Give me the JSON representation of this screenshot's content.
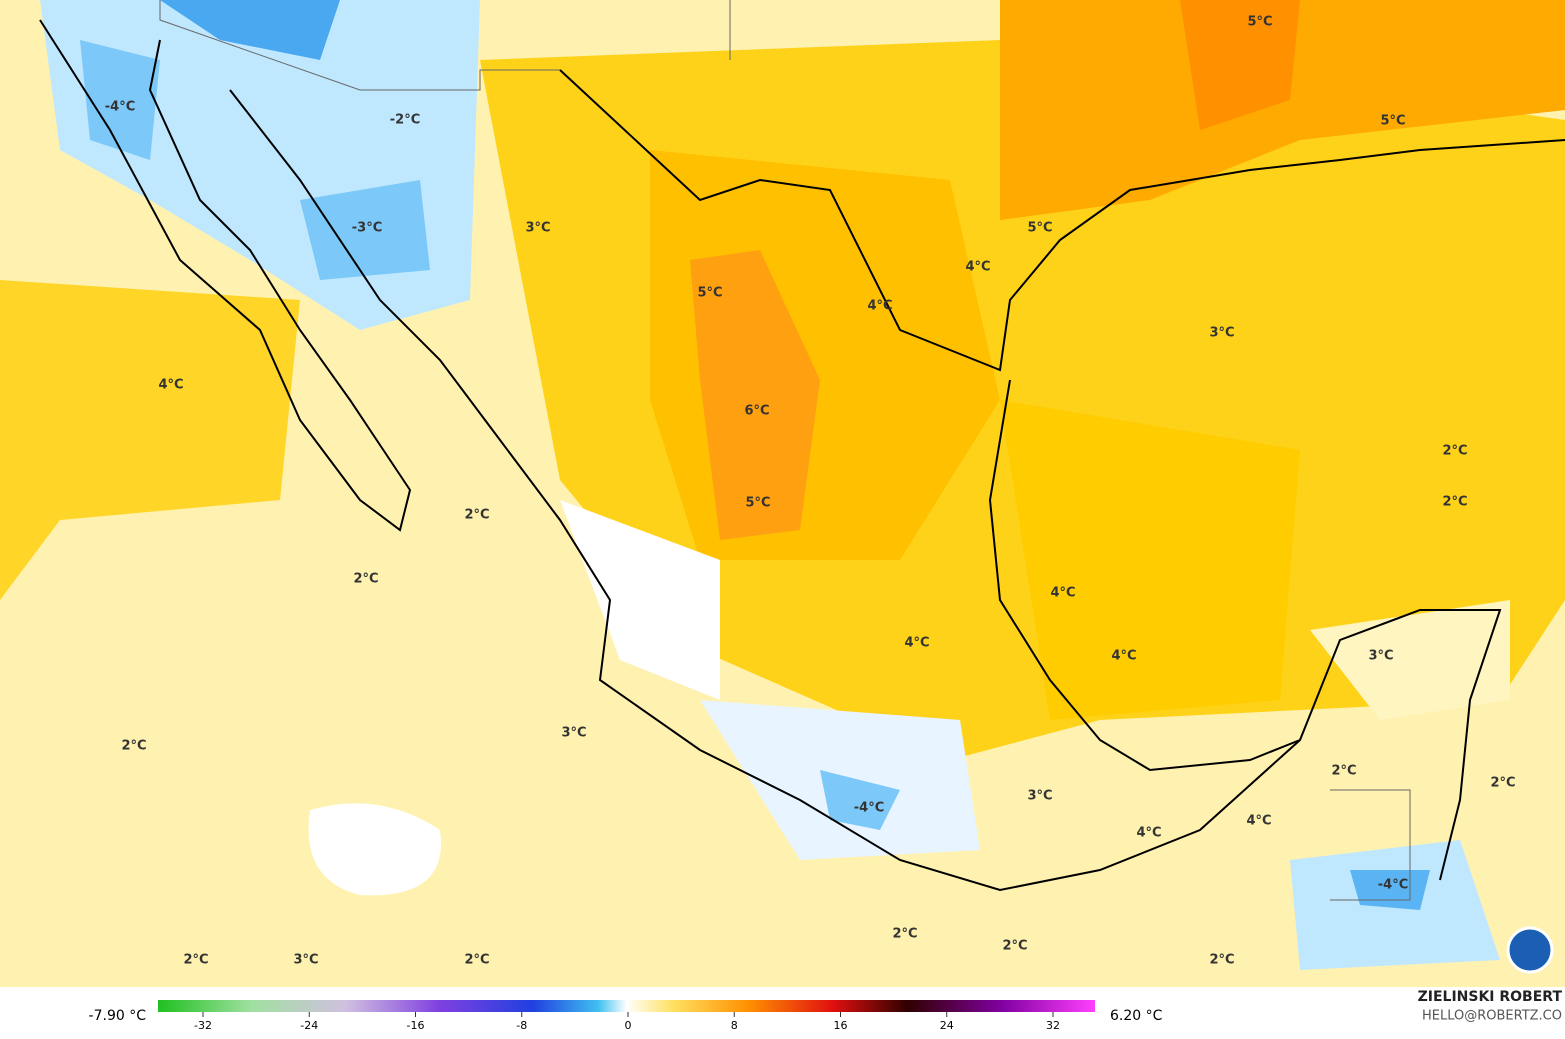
{
  "map": {
    "labels": [
      "-4°C",
      "-2°C",
      "-3°C",
      "3°C",
      "5°C",
      "5°C",
      "5°C",
      "4°C",
      "5°C",
      "4°C",
      "3°C",
      "4°C",
      "6°C",
      "2°C",
      "2°C",
      "5°C",
      "2°C",
      "2°C",
      "4°C",
      "4°C",
      "4°C",
      "3°C",
      "3°C",
      "2°C",
      "2°C",
      "2°C",
      "3°C",
      "-4°C",
      "4°C",
      "4°C",
      "-4°C",
      "2°C",
      "2°C",
      "2°C",
      "3°C",
      "2°C",
      "2°C"
    ]
  },
  "colorbar": {
    "min_label": "-7.90 °C",
    "max_label": "6.20 °C",
    "ticks": [
      -32,
      -24,
      -16,
      -8,
      0,
      8,
      16,
      24,
      32
    ]
  },
  "credit": {
    "name": "ZIELINSKI ROBERT",
    "email": "HELLO@ROBERTZ.CO"
  }
}
